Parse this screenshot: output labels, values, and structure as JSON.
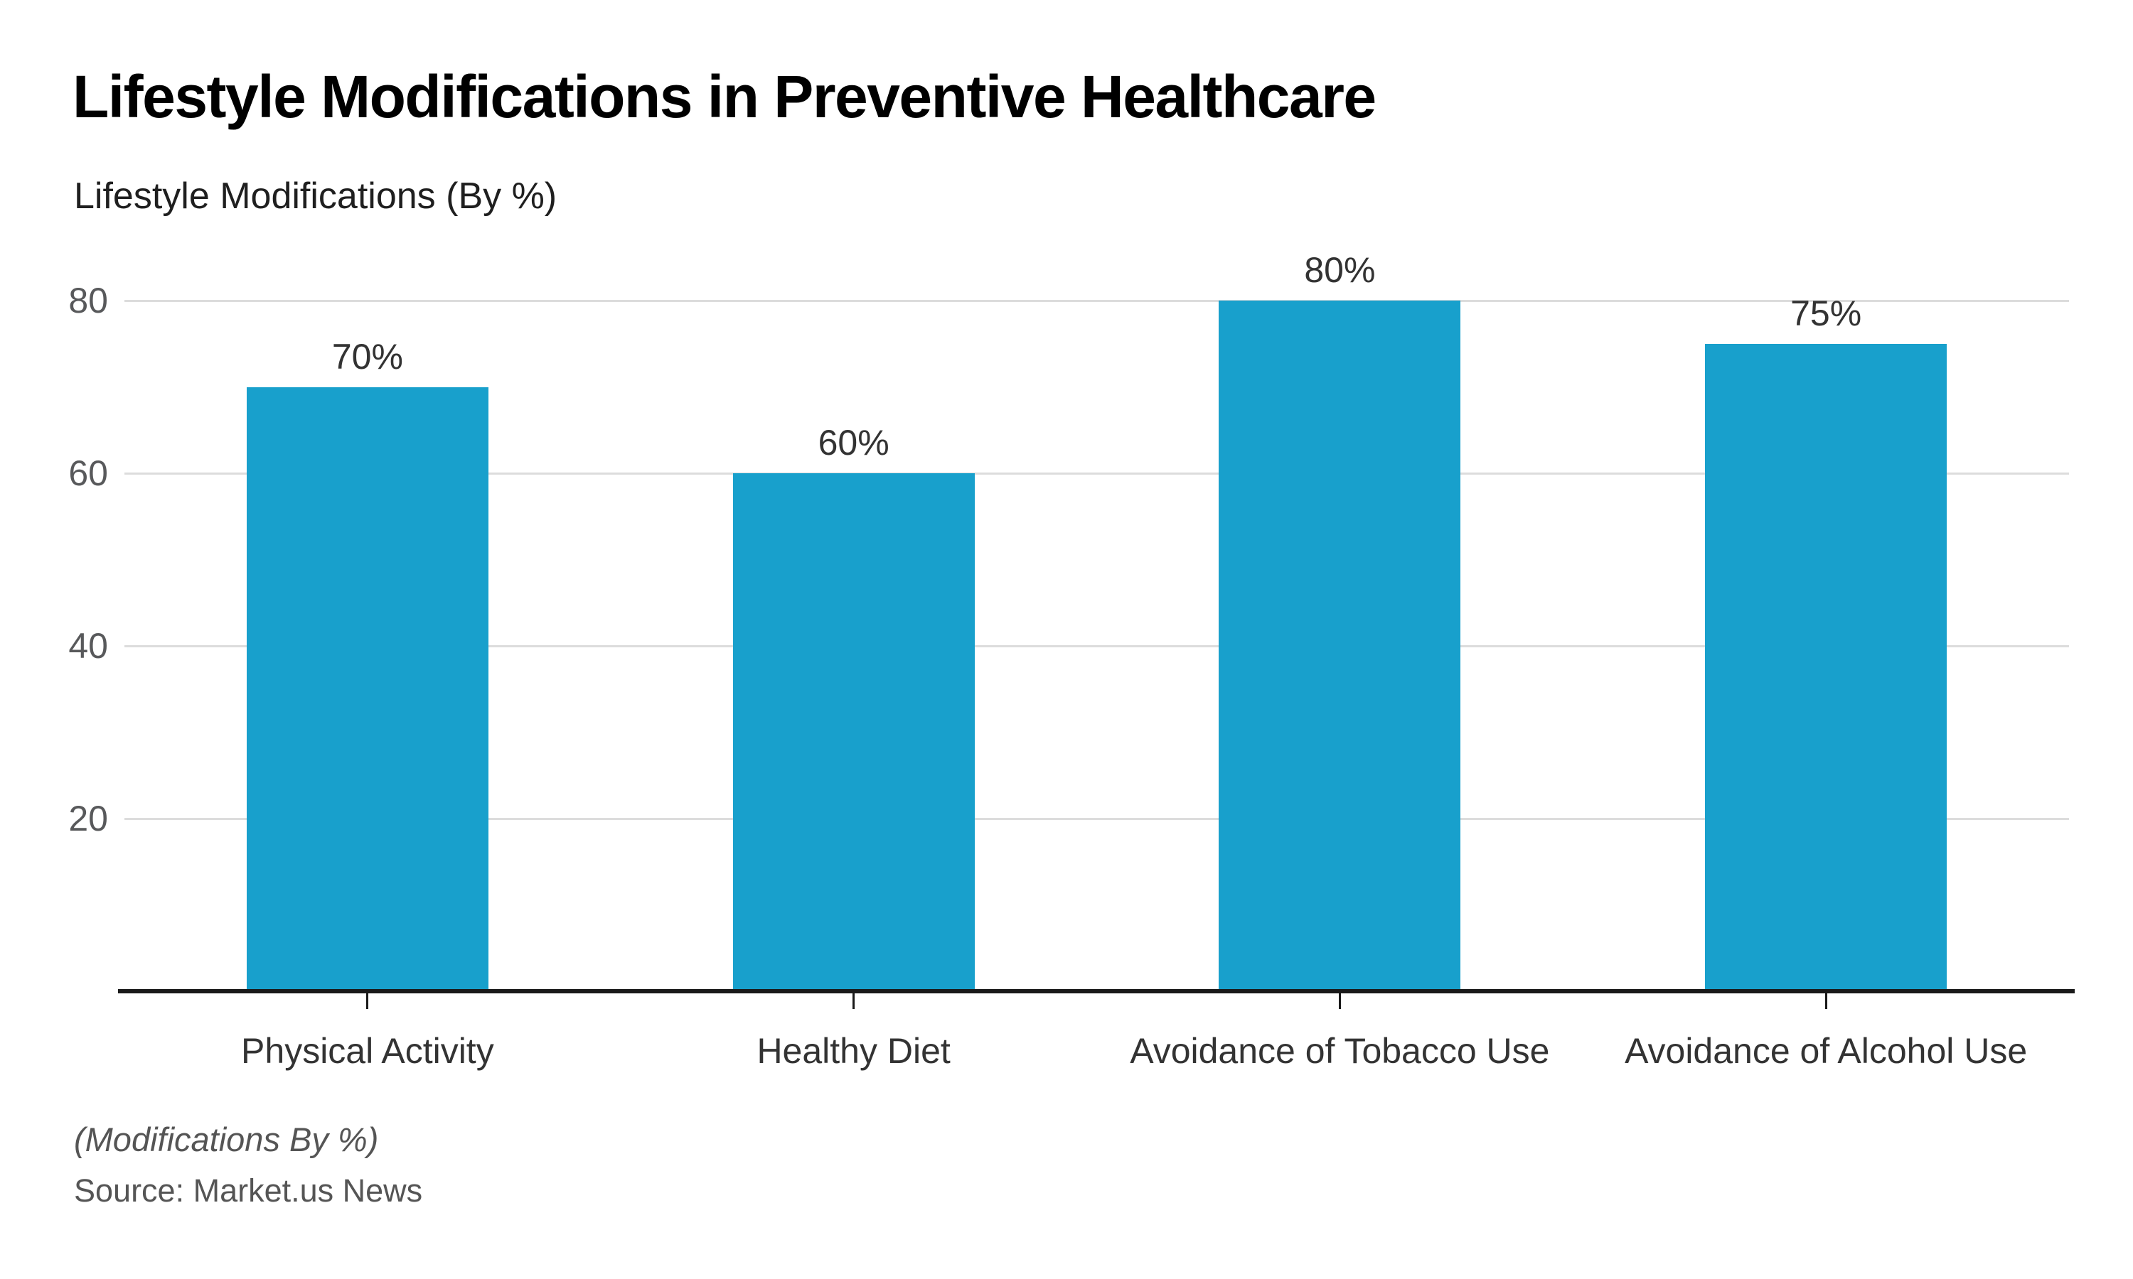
{
  "header": {
    "title": "Lifestyle Modifications in Preventive Healthcare",
    "subtitle": "Lifestyle Modifications (By %)"
  },
  "footer": {
    "note": "(Modifications By %)",
    "source": "Source: Market.us News"
  },
  "chart_data": {
    "type": "bar",
    "title": "Lifestyle Modifications in Preventive Healthcare",
    "subtitle": "Lifestyle Modifications (By %)",
    "categories": [
      "Physical Activity",
      "Healthy Diet",
      "Avoidance of Tobacco Use",
      "Avoidance of Alcohol Use"
    ],
    "values": [
      70,
      60,
      80,
      75
    ],
    "value_labels": [
      "70%",
      "60%",
      "80%",
      "75%"
    ],
    "xlabel": "",
    "ylabel": "",
    "yticks": [
      20,
      40,
      60,
      80
    ],
    "ylim": [
      0,
      83
    ],
    "grid": true,
    "legend": false,
    "annotation": "(Modifications By %)",
    "source": "Source: Market.us News",
    "colors": {
      "bar": "#18a0cc",
      "gridline": "#dcdcdc",
      "axis_line": "#1a1a1a",
      "title": "#000000",
      "subtitle": "#1f1f1f",
      "y_tick_label": "#58595b",
      "x_tick_label": "#333333",
      "value_label": "#333333",
      "footer_text": "#555555",
      "background": "#ffffff"
    }
  }
}
